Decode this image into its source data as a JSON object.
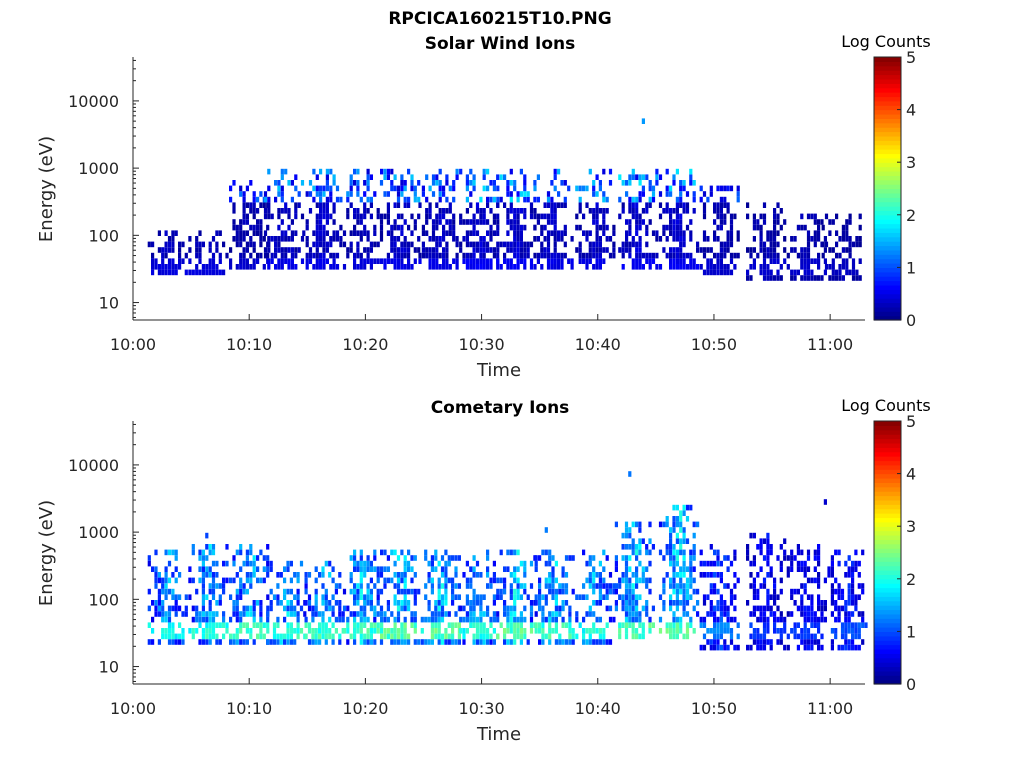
{
  "figure": {
    "title": "RPCICA160215T10.PNG"
  },
  "colors": {
    "scale": [
      "#00007f",
      "#0000ff",
      "#007fff",
      "#00ffff",
      "#7fff7f",
      "#ffff00",
      "#ff7f00",
      "#ff0000",
      "#7f0000"
    ]
  },
  "chart_data": [
    {
      "type": "heatmap",
      "title": "Solar Wind Ions",
      "xlabel": "Time",
      "ylabel": "Energy (eV)",
      "y_scale": "log",
      "x_range": [
        "10:00",
        "11:03"
      ],
      "ylim": [
        5.5,
        45000
      ],
      "xticks": [
        "10:00",
        "10:10",
        "10:20",
        "10:30",
        "10:40",
        "10:50",
        "11:00"
      ],
      "yticks": [
        "10",
        "100",
        "1000",
        "10000"
      ],
      "colorbar": {
        "label": "Log Counts",
        "range": [
          0,
          5
        ],
        "ticks": [
          "0",
          "1",
          "2",
          "3",
          "4",
          "5"
        ]
      },
      "grid": false,
      "bursts": [
        {
          "t": 3.0,
          "lo": 28,
          "hi": 120,
          "peak": 0.35
        },
        {
          "t": 6.5,
          "lo": 28,
          "hi": 120,
          "peak": 0.35
        },
        {
          "t": 10.0,
          "lo": 30,
          "hi": 700,
          "peak": 0.3
        },
        {
          "t": 13.0,
          "lo": 30,
          "hi": 900,
          "peak": 0.4
        },
        {
          "t": 16.3,
          "lo": 30,
          "hi": 900,
          "peak": 0.4
        },
        {
          "t": 19.8,
          "lo": 30,
          "hi": 900,
          "peak": 0.35
        },
        {
          "t": 23.0,
          "lo": 30,
          "hi": 900,
          "peak": 0.4
        },
        {
          "t": 26.3,
          "lo": 30,
          "hi": 900,
          "peak": 0.4
        },
        {
          "t": 29.8,
          "lo": 30,
          "hi": 900,
          "peak": 0.45
        },
        {
          "t": 33.0,
          "lo": 30,
          "hi": 900,
          "peak": 0.45
        },
        {
          "t": 36.2,
          "lo": 30,
          "hi": 1000,
          "peak": 0.4
        },
        {
          "t": 39.8,
          "lo": 30,
          "hi": 900,
          "peak": 0.4
        },
        {
          "t": 43.5,
          "lo": 30,
          "hi": 900,
          "peak": 0.45
        },
        {
          "t": 47.0,
          "lo": 30,
          "hi": 900,
          "peak": 0.45
        },
        {
          "t": 50.5,
          "lo": 25,
          "hi": 500,
          "peak": 0.3
        },
        {
          "t": 54.5,
          "lo": 20,
          "hi": 300,
          "peak": 0.3
        },
        {
          "t": 58.0,
          "lo": 20,
          "hi": 200,
          "peak": 0.3
        },
        {
          "t": 61.0,
          "lo": 20,
          "hi": 200,
          "peak": 0.25
        }
      ]
    },
    {
      "type": "heatmap",
      "title": "Cometary Ions",
      "xlabel": "Time",
      "ylabel": "Energy (eV)",
      "y_scale": "log",
      "x_range": [
        "10:00",
        "11:03"
      ],
      "ylim": [
        5.5,
        45000
      ],
      "xticks": [
        "10:00",
        "10:10",
        "10:20",
        "10:30",
        "10:40",
        "10:50",
        "11:00"
      ],
      "yticks": [
        "10",
        "100",
        "1000",
        "10000"
      ],
      "colorbar": {
        "label": "Log Counts",
        "range": [
          0,
          5
        ],
        "ticks": [
          "0",
          "1",
          "2",
          "3",
          "4",
          "5"
        ]
      },
      "grid": false,
      "bursts": [
        {
          "t": 3.0,
          "lo": 22,
          "hi": 600,
          "peak": 1.5
        },
        {
          "t": 6.5,
          "lo": 22,
          "hi": 700,
          "peak": 1.6
        },
        {
          "t": 10.0,
          "lo": 22,
          "hi": 700,
          "peak": 1.7
        },
        {
          "t": 13.2,
          "lo": 22,
          "hi": 400,
          "peak": 1.7
        },
        {
          "t": 16.5,
          "lo": 22,
          "hi": 400,
          "peak": 1.7
        },
        {
          "t": 19.8,
          "lo": 22,
          "hi": 500,
          "peak": 1.7
        },
        {
          "t": 23.0,
          "lo": 22,
          "hi": 600,
          "peak": 1.8
        },
        {
          "t": 26.5,
          "lo": 22,
          "hi": 600,
          "peak": 1.8
        },
        {
          "t": 29.8,
          "lo": 22,
          "hi": 500,
          "peak": 1.6
        },
        {
          "t": 33.0,
          "lo": 22,
          "hi": 500,
          "peak": 1.8
        },
        {
          "t": 36.3,
          "lo": 22,
          "hi": 500,
          "peak": 1.7
        },
        {
          "t": 39.8,
          "lo": 22,
          "hi": 500,
          "peak": 1.6
        },
        {
          "t": 43.2,
          "lo": 25,
          "hi": 1500,
          "peak": 1.8
        },
        {
          "t": 47.0,
          "lo": 25,
          "hi": 2500,
          "peak": 1.8
        },
        {
          "t": 50.5,
          "lo": 18,
          "hi": 700,
          "peak": 1.0
        },
        {
          "t": 54.5,
          "lo": 18,
          "hi": 900,
          "peak": 0.7
        },
        {
          "t": 58.0,
          "lo": 18,
          "hi": 700,
          "peak": 0.7
        },
        {
          "t": 61.5,
          "lo": 18,
          "hi": 600,
          "peak": 0.8
        }
      ]
    }
  ]
}
